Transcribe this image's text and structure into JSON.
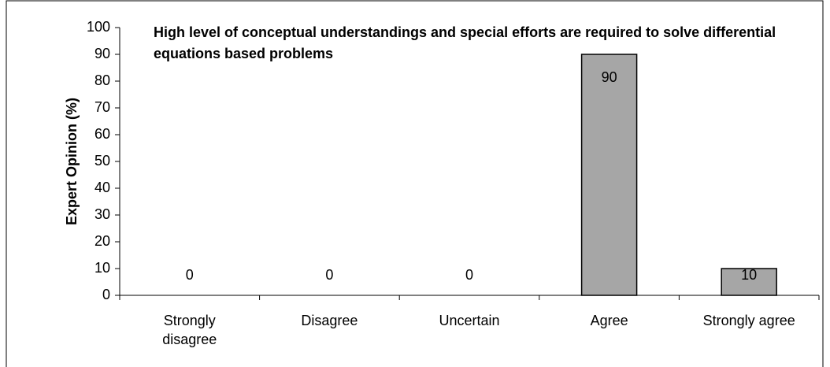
{
  "chart_data": {
    "type": "bar",
    "title": "High level of conceptual understandings and special efforts are required to solve differential equations based problems",
    "ylabel": "Expert Opinion (%)",
    "categories": [
      "Strongly disagree",
      "Disagree",
      "Uncertain",
      "Agree",
      "Strongly agree"
    ],
    "values": [
      0,
      0,
      0,
      90,
      10
    ],
    "color": "#a6a6a6",
    "ylim": [
      0,
      100
    ],
    "yticks": [
      0,
      10,
      20,
      30,
      40,
      50,
      60,
      70,
      80,
      90,
      100
    ],
    "grid": false
  }
}
